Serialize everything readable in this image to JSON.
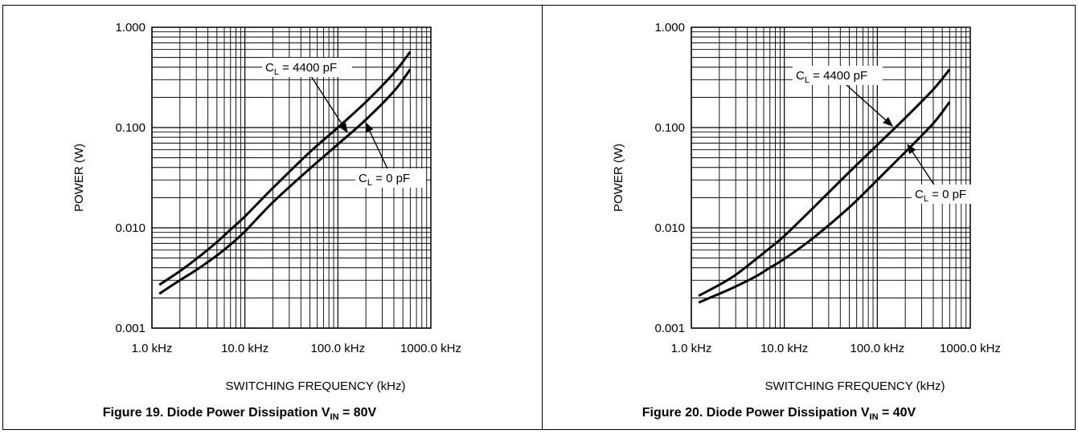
{
  "chart_data": [
    {
      "type": "line",
      "caption": {
        "text": "Figure 19. Diode Power Dissipation V",
        "sub": "IN",
        "suffix": " = 80V"
      },
      "xlabel": "SWITCHING FREQUENCY (kHz)",
      "ylabel": "POWER (W)",
      "x_scale": "log",
      "y_scale": "log",
      "xlim": [
        1,
        1000
      ],
      "ylim": [
        0.001,
        1
      ],
      "grid": true,
      "x_ticks": [
        "1.0 kHz",
        "10.0 kHz",
        "100.0 kHz",
        "1000.0 kHz"
      ],
      "y_ticks": [
        "0.001",
        "0.010",
        "0.100",
        "1.000"
      ],
      "series": [
        {
          "name": "C_L = 4400 pF",
          "label_main": "C",
          "label_sub": "L",
          "label_rest": " = 4400 pF",
          "x": [
            1.2,
            2,
            3,
            5,
            7,
            10,
            20,
            50,
            100,
            200,
            400,
            600
          ],
          "y": [
            0.0027,
            0.0037,
            0.0049,
            0.0072,
            0.0096,
            0.013,
            0.025,
            0.057,
            0.1,
            0.18,
            0.35,
            0.57
          ]
        },
        {
          "name": "C_L = 0 pF",
          "label_main": "C",
          "label_sub": "L",
          "label_rest": " = 0 pF",
          "x": [
            1.2,
            2,
            3,
            5,
            7,
            10,
            20,
            50,
            100,
            200,
            400,
            600
          ],
          "y": [
            0.0022,
            0.003,
            0.0038,
            0.0053,
            0.0068,
            0.0092,
            0.018,
            0.039,
            0.068,
            0.12,
            0.23,
            0.38
          ]
        }
      ]
    },
    {
      "type": "line",
      "caption": {
        "text": "Figure 20. Diode Power Dissipation V",
        "sub": "IN",
        "suffix": " = 40V"
      },
      "xlabel": "SWITCHING FREQUENCY (kHz)",
      "ylabel": "POWER (W)",
      "x_scale": "log",
      "y_scale": "log",
      "xlim": [
        1,
        1000
      ],
      "ylim": [
        0.001,
        1
      ],
      "grid": true,
      "x_ticks": [
        "1.0 kHz",
        "10.0 kHz",
        "100.0 kHz",
        "1000.0 kHz"
      ],
      "y_ticks": [
        "0.001",
        "0.010",
        "0.100",
        "1.000"
      ],
      "series": [
        {
          "name": "C_L = 4400 pF",
          "label_main": "C",
          "label_sub": "L",
          "label_rest": " = 4400 pF",
          "x": [
            1.2,
            2,
            3,
            5,
            7,
            10,
            20,
            50,
            100,
            200,
            400,
            600
          ],
          "y": [
            0.0021,
            0.0027,
            0.0034,
            0.0049,
            0.0063,
            0.0083,
            0.0155,
            0.036,
            0.067,
            0.125,
            0.24,
            0.38
          ]
        },
        {
          "name": "C_L = 0 pF",
          "label_main": "C",
          "label_sub": "L",
          "label_rest": " = 0 pF",
          "x": [
            1.2,
            2,
            3,
            5,
            7,
            10,
            20,
            50,
            100,
            200,
            400,
            600
          ],
          "y": [
            0.0018,
            0.0022,
            0.0026,
            0.0033,
            0.004,
            0.0049,
            0.0078,
            0.016,
            0.03,
            0.057,
            0.11,
            0.18
          ]
        }
      ]
    }
  ]
}
